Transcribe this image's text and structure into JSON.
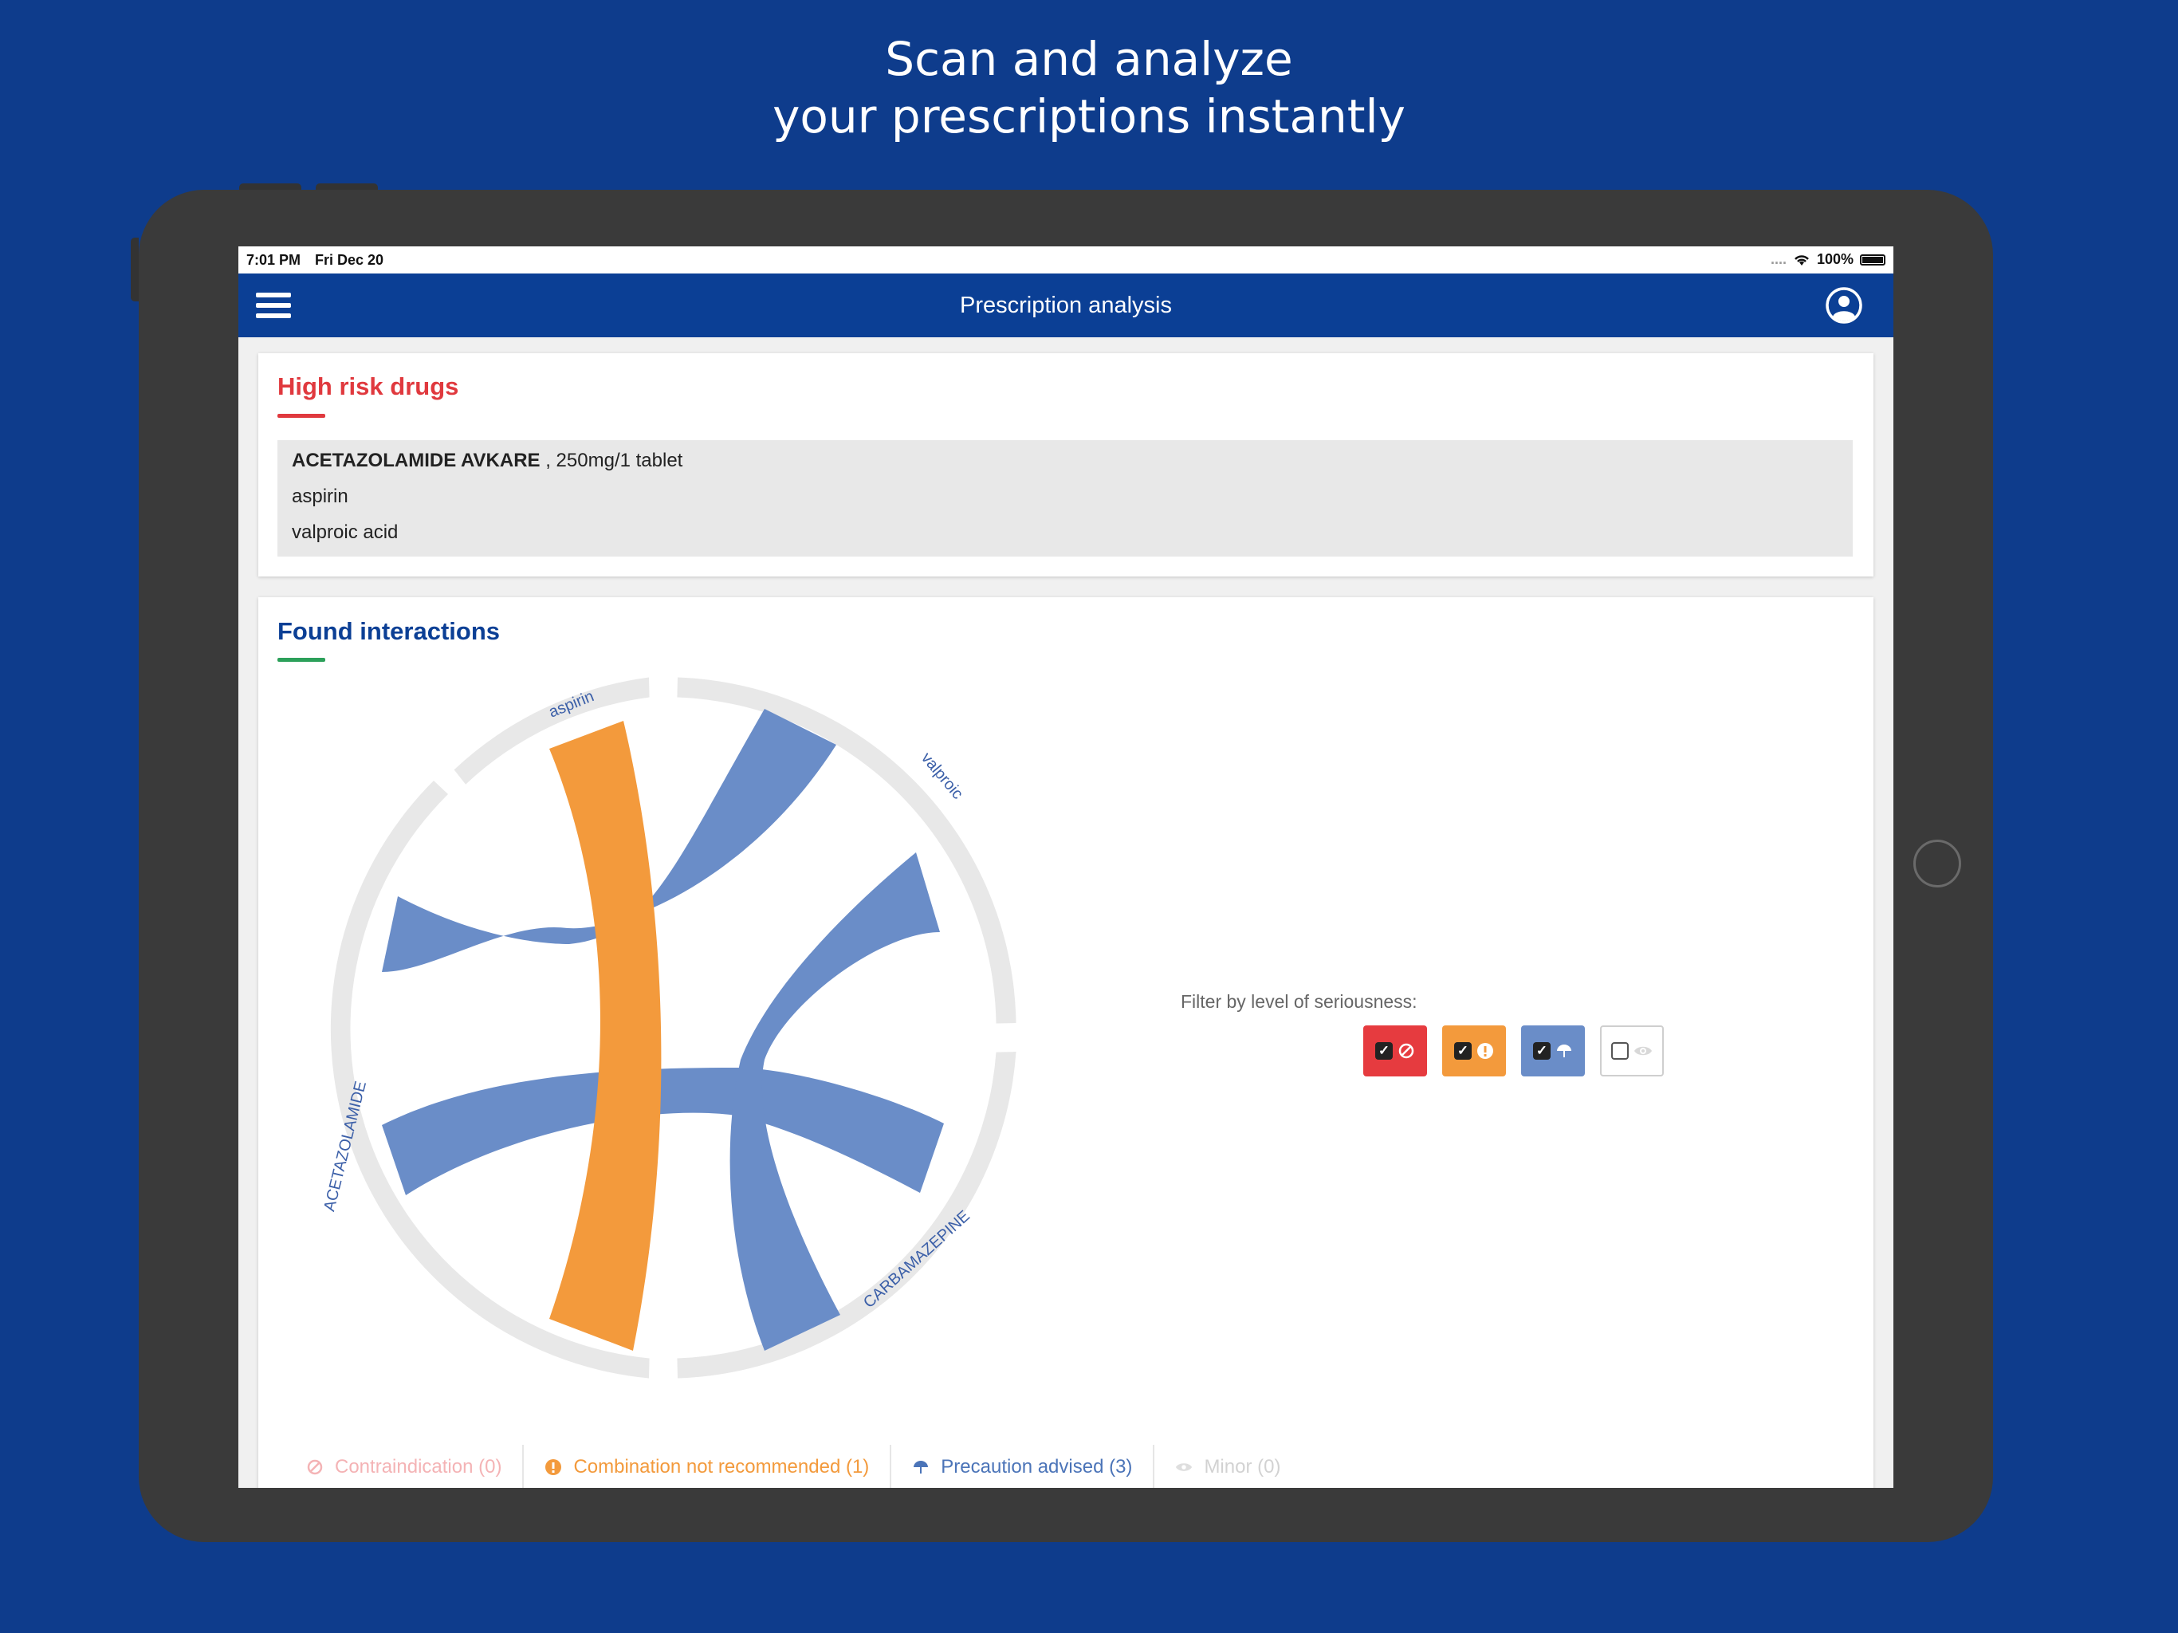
{
  "headline": {
    "line1": "Scan and analyze",
    "line2": "your prescriptions instantly"
  },
  "status_bar": {
    "time": "7:01 PM",
    "date": "Fri Dec 20",
    "signal": "....",
    "battery": "100%"
  },
  "navbar": {
    "title": "Prescription analysis",
    "menu_icon": "hamburger-menu-icon",
    "account_icon": "user-circle-icon"
  },
  "high_risk": {
    "title": "High risk drugs",
    "accent_color": "#e0393e",
    "drugs": [
      {
        "name": "ACETAZOLAMIDE AVKARE",
        "detail": ", 250mg/1 tablet"
      },
      {
        "name": "aspirin",
        "detail": ""
      },
      {
        "name": "valproic acid",
        "detail": ""
      }
    ]
  },
  "interactions": {
    "title": "Found interactions",
    "title_color": "#0b3f95",
    "underline_color": "#2ca05a",
    "filter_label": "Filter by level of seriousness:",
    "filters": [
      {
        "level": "contraindication",
        "checked": true,
        "color": "#e63b3f",
        "icon": "forbidden-icon"
      },
      {
        "level": "combination-not-recommended",
        "checked": true,
        "color": "#f39a3c",
        "icon": "exclamation-icon"
      },
      {
        "level": "precaution-advised",
        "checked": true,
        "color": "#6a8dc8",
        "icon": "umbrella-icon"
      },
      {
        "level": "minor",
        "checked": false,
        "color": "#ffffff",
        "icon": "eye-icon"
      }
    ],
    "legend": [
      {
        "label": "Contraindication (0)",
        "color": "#f4b3b5",
        "icon": "forbidden-icon"
      },
      {
        "label": "Combination not recommended (1)",
        "color": "#f39a3c",
        "icon": "exclamation-icon"
      },
      {
        "label": "Precaution advised (3)",
        "color": "#4b74b8",
        "icon": "umbrella-icon"
      },
      {
        "label": "Minor (0)",
        "color": "#d2d2d2",
        "icon": "eye-icon"
      }
    ]
  },
  "chart_data": {
    "type": "chord",
    "nodes": [
      "aspirin",
      "valproic",
      "CARBAMAZEPINE",
      "ACETAZOLAMIDE"
    ],
    "links": [
      {
        "source": "aspirin",
        "target": "CARBAMAZEPINE",
        "severity": "Combination not recommended",
        "color": "#f39a3c"
      },
      {
        "source": "valproic",
        "target": "ACETAZOLAMIDE",
        "severity": "Precaution advised",
        "color": "#6a8dc8"
      },
      {
        "source": "valproic",
        "target": "CARBAMAZEPINE",
        "severity": "Precaution advised",
        "color": "#6a8dc8"
      },
      {
        "source": "ACETAZOLAMIDE",
        "target": "CARBAMAZEPINE",
        "severity": "Precaution advised",
        "color": "#6a8dc8"
      }
    ],
    "ring_color": "#e8e8e8",
    "label_color": "#3b5fa8"
  }
}
